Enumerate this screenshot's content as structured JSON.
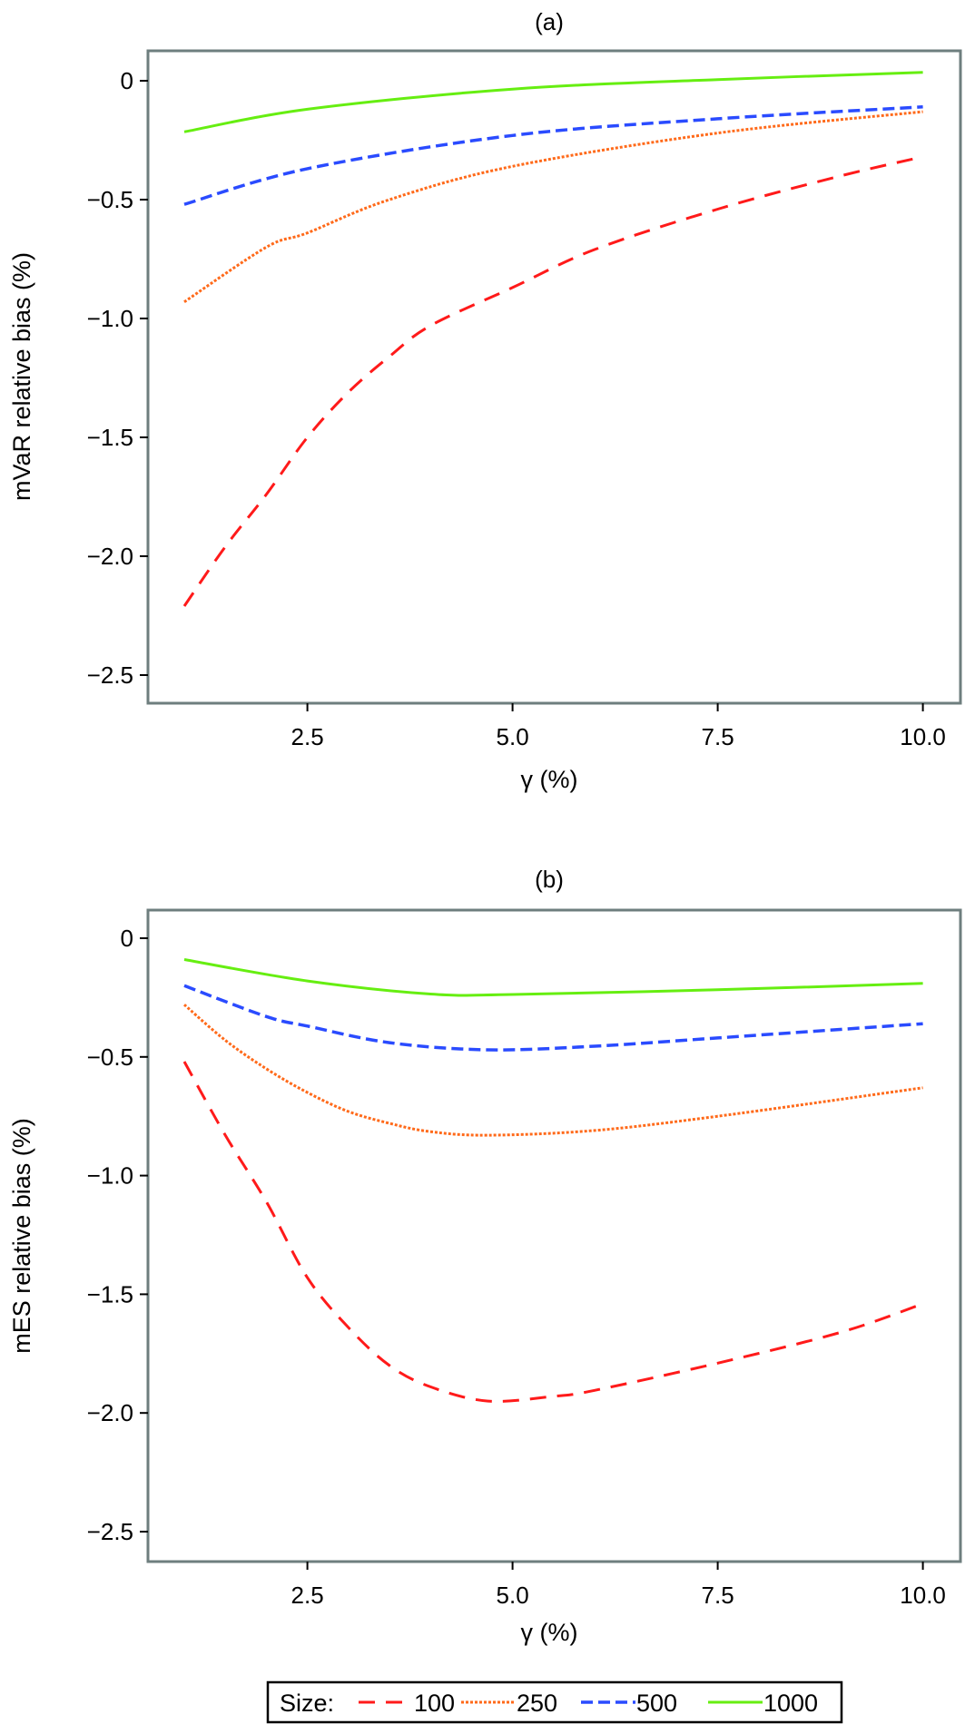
{
  "chart_data": [
    {
      "type": "line",
      "title": "(a)",
      "xlabel": "γ (%)",
      "ylabel": "mVaR relative bias (%)",
      "xlim": [
        0.6,
        10.4
      ],
      "ylim": [
        -2.63,
        0.13
      ],
      "xticks": [
        2.5,
        5.0,
        7.5,
        10.0
      ],
      "xtick_labels": [
        "2.5",
        "5.0",
        "7.5",
        "10.0"
      ],
      "yticks": [
        0,
        -0.5,
        -1.0,
        -1.5,
        -2.0,
        -2.5
      ],
      "ytick_labels": [
        "0",
        "−0.5",
        "−1.0",
        "−1.5",
        "−2.0",
        "−2.5"
      ],
      "grid": false,
      "series": [
        {
          "name": "100",
          "color": "#ff1a1a",
          "style": "long-dash",
          "x": [
            1,
            1.5,
            2,
            2.5,
            3,
            3.5,
            4,
            5,
            6,
            7.5,
            9,
            10
          ],
          "y": [
            -2.21,
            -1.96,
            -1.74,
            -1.5,
            -1.31,
            -1.16,
            -1.03,
            -0.87,
            -0.71,
            -0.54,
            -0.4,
            -0.32
          ]
        },
        {
          "name": "250",
          "color": "#ff6a1a",
          "style": "dotted",
          "x": [
            1,
            2,
            2.5,
            3.5,
            5,
            7.5,
            10
          ],
          "y": [
            -0.93,
            -0.7,
            -0.64,
            -0.5,
            -0.36,
            -0.22,
            -0.13
          ]
        },
        {
          "name": "500",
          "color": "#2a4bff",
          "style": "dash",
          "x": [
            1,
            2.5,
            5,
            7.5,
            10
          ],
          "y": [
            -0.52,
            -0.37,
            -0.23,
            -0.16,
            -0.11
          ]
        },
        {
          "name": "1000",
          "color": "#66ee11",
          "style": "solid",
          "x": [
            1,
            2.5,
            5,
            7.5,
            10
          ],
          "y": [
            -0.215,
            -0.12,
            -0.035,
            0.005,
            0.035
          ]
        }
      ]
    },
    {
      "type": "line",
      "title": "(b)",
      "xlabel": "γ (%)",
      "ylabel": "mES relative bias (%)",
      "xlim": [
        0.6,
        10.4
      ],
      "ylim": [
        -2.63,
        0.13
      ],
      "xticks": [
        2.5,
        5.0,
        7.5,
        10.0
      ],
      "xtick_labels": [
        "2.5",
        "5.0",
        "7.5",
        "10.0"
      ],
      "yticks": [
        0,
        -0.5,
        -1.0,
        -1.5,
        -2.0,
        -2.5
      ],
      "ytick_labels": [
        "0",
        "−0.5",
        "−1.0",
        "−1.5",
        "−2.0",
        "−2.5"
      ],
      "grid": false,
      "series": [
        {
          "name": "100",
          "color": "#ff1a1a",
          "style": "long-dash",
          "x": [
            1,
            1.5,
            2,
            2.5,
            3,
            3.5,
            4,
            4.7,
            5.5,
            6,
            7.5,
            9,
            10
          ],
          "y": [
            -0.52,
            -0.83,
            -1.11,
            -1.43,
            -1.64,
            -1.8,
            -1.89,
            -1.95,
            -1.93,
            -1.905,
            -1.79,
            -1.66,
            -1.54
          ]
        },
        {
          "name": "250",
          "color": "#ff6a1a",
          "style": "dotted",
          "x": [
            1,
            1.5,
            2,
            2.5,
            3,
            3.5,
            4,
            4.7,
            6,
            7.5,
            10
          ],
          "y": [
            -0.28,
            -0.43,
            -0.55,
            -0.65,
            -0.73,
            -0.78,
            -0.815,
            -0.83,
            -0.81,
            -0.75,
            -0.63
          ]
        },
        {
          "name": "500",
          "color": "#2a4bff",
          "style": "dash",
          "x": [
            1,
            2,
            2.5,
            3.5,
            4.7,
            6,
            7.5,
            10
          ],
          "y": [
            -0.2,
            -0.33,
            -0.37,
            -0.44,
            -0.47,
            -0.455,
            -0.42,
            -0.36
          ]
        },
        {
          "name": "1000",
          "color": "#66ee11",
          "style": "solid",
          "x": [
            1,
            2.5,
            4,
            5,
            7.5,
            10
          ],
          "y": [
            -0.09,
            -0.18,
            -0.235,
            -0.237,
            -0.217,
            -0.19
          ]
        }
      ]
    }
  ],
  "legend": {
    "title": "Size:",
    "position": "bottom",
    "items": [
      "100",
      "250",
      "500",
      "1000"
    ]
  }
}
